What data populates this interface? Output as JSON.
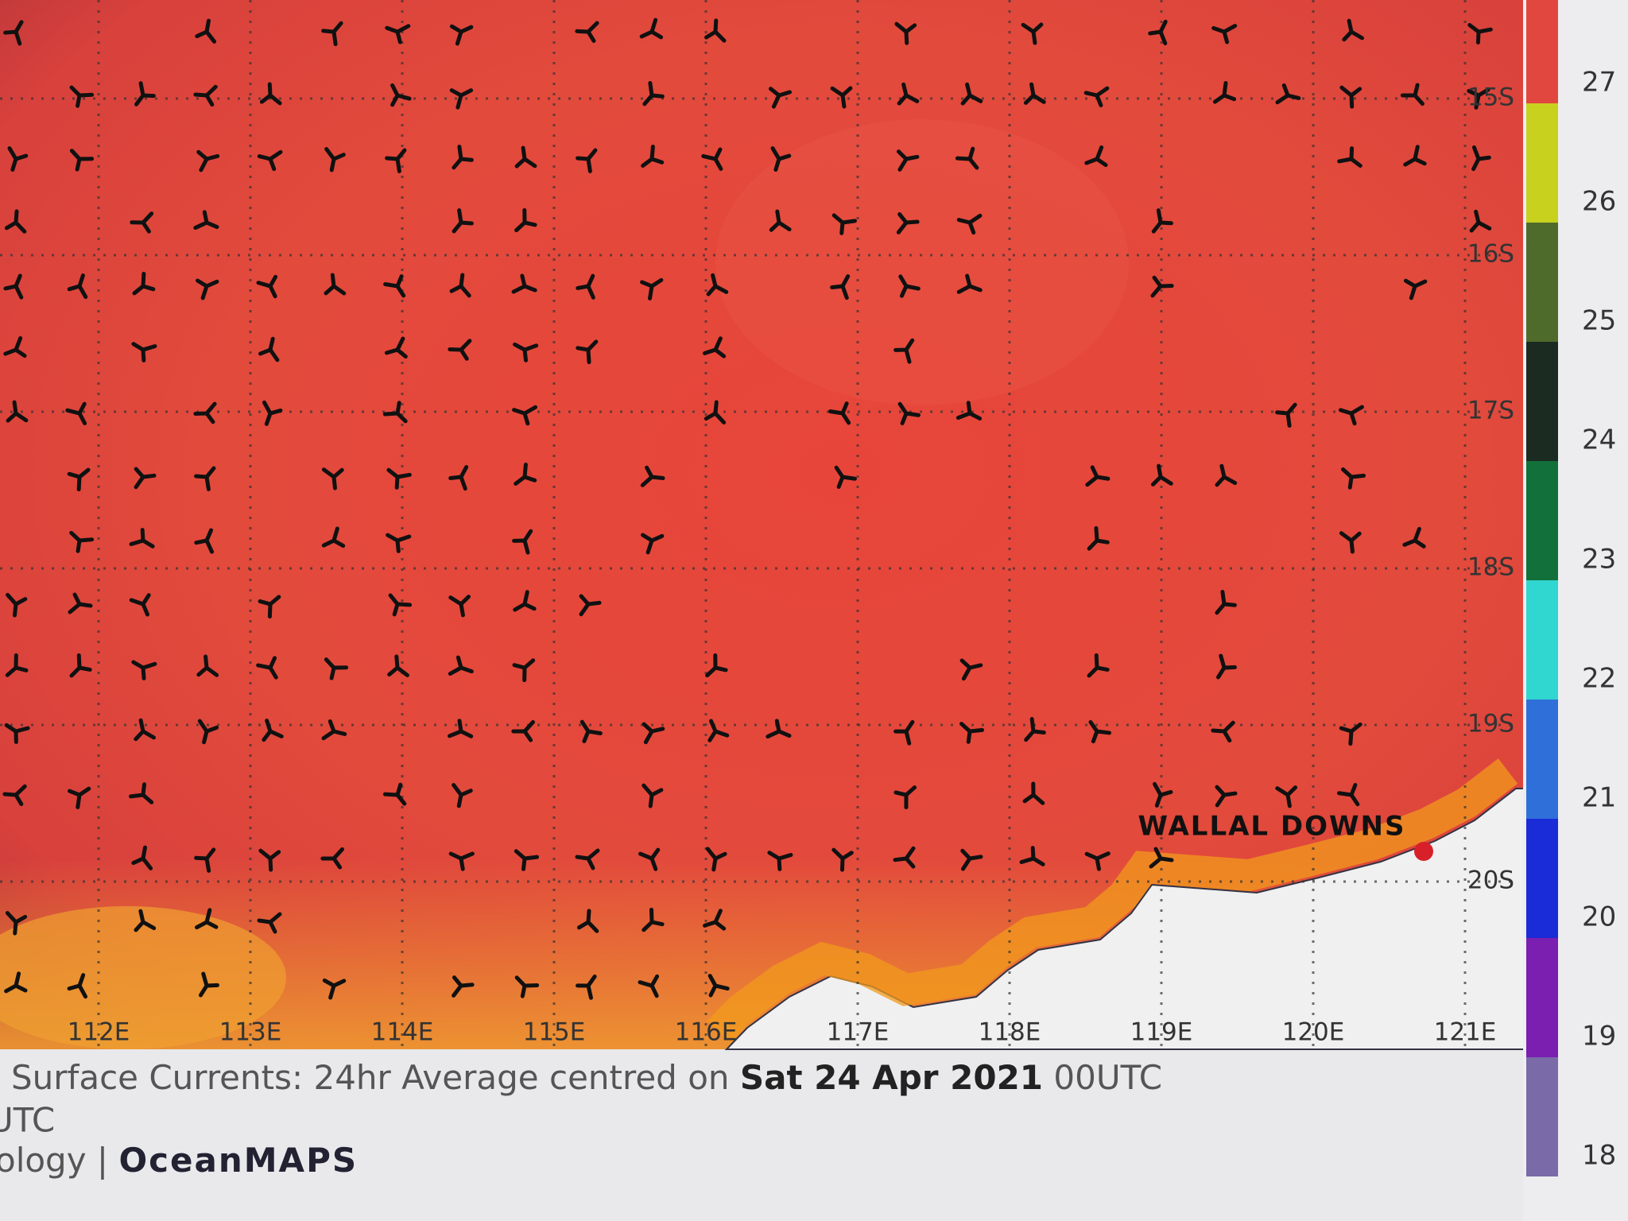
{
  "map": {
    "lon_labels": [
      "112E",
      "113E",
      "114E",
      "115E",
      "116E",
      "117E",
      "118E",
      "119E",
      "120E",
      "121E"
    ],
    "lat_labels": [
      "15S",
      "16S",
      "17S",
      "18S",
      "19S",
      "20S"
    ],
    "place": "WALLAL DOWNS",
    "colorbar": {
      "ticks": [
        27,
        26,
        25,
        24,
        23,
        22,
        21,
        20,
        19,
        18
      ],
      "colors": [
        "#e2473f",
        "#c9d11f",
        "#4f6b2b",
        "#1b2b22",
        "#12713a",
        "#30d6d0",
        "#2f6fd9",
        "#1a2bd8",
        "#7a1fb0",
        "#7a6aa8"
      ]
    }
  },
  "caption": {
    "line1_prefix": "Surface Currents: 24hr Average centred on",
    "line1_date": "Sat 24 Apr 2021",
    "line1_suffix": "00UTC",
    "line2": "UTC",
    "line3_prefix": "ology |",
    "line3_brand": "OceanMAPS"
  }
}
